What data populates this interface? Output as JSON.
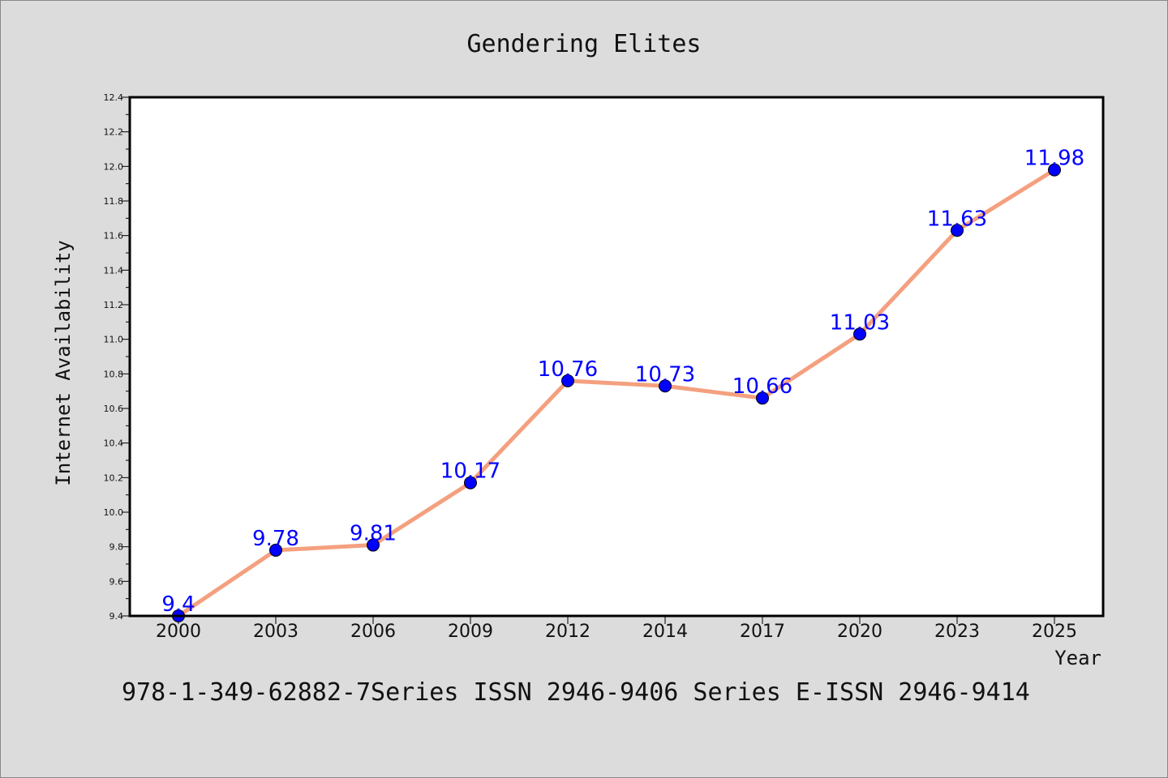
{
  "chart_data": {
    "type": "line",
    "title": "Gendering Elites",
    "xlabel": "Year",
    "ylabel": "Internet Availability",
    "categories": [
      "2000",
      "2003",
      "2006",
      "2009",
      "2012",
      "2014",
      "2017",
      "2020",
      "2023",
      "2025"
    ],
    "series": [
      {
        "values": [
          9.4,
          9.78,
          9.81,
          10.17,
          10.76,
          10.73,
          10.66,
          11.03,
          11.63,
          11.98
        ],
        "labels": [
          "9.4",
          "9.78",
          "9.81",
          "10.17",
          "10.76",
          "10.73",
          "10.66",
          "11.03",
          "11.63",
          "11.98"
        ]
      }
    ],
    "ylim": [
      9.4,
      12.4
    ],
    "yticks": [
      "9.4",
      "9.6",
      "9.8",
      "10.0",
      "10.2",
      "10.4",
      "10.6",
      "10.8",
      "11.0",
      "11.2",
      "11.4",
      "11.6",
      "11.8",
      "12.0",
      "12.2",
      "12.4"
    ],
    "grid": false,
    "colors": {
      "line": "#f4a07f",
      "marker": "#0000ff",
      "label": "#0000ff",
      "background": "#dcdcdc",
      "plot_background": "#ffffff"
    }
  },
  "footer": {
    "text": "978-1-349-62882-7Series ISSN 2946-9406 Series E-ISSN 2946-9414"
  }
}
